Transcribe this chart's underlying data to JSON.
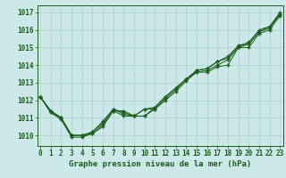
{
  "x": [
    0,
    1,
    2,
    3,
    4,
    5,
    6,
    7,
    8,
    9,
    10,
    11,
    12,
    13,
    14,
    15,
    16,
    17,
    18,
    19,
    20,
    21,
    22,
    23
  ],
  "series": [
    [
      1012.2,
      1011.3,
      1010.9,
      1009.9,
      1009.9,
      1010.1,
      1010.5,
      1011.4,
      1011.4,
      1011.1,
      1011.1,
      1011.5,
      1012.0,
      1012.5,
      1013.1,
      1013.6,
      1013.6,
      1013.9,
      1014.0,
      1015.0,
      1015.0,
      1015.8,
      1016.0,
      1016.8
    ],
    [
      1012.2,
      1011.3,
      1011.0,
      1010.0,
      1010.0,
      1010.2,
      1010.8,
      1011.5,
      1011.3,
      1011.1,
      1011.1,
      1011.6,
      1012.2,
      1012.7,
      1013.2,
      1013.7,
      1013.8,
      1014.2,
      1014.4,
      1015.1,
      1015.2,
      1015.9,
      1016.2,
      1016.9
    ],
    [
      1012.2,
      1011.4,
      1011.0,
      1010.0,
      1010.0,
      1010.1,
      1010.6,
      1011.4,
      1011.1,
      1011.1,
      1011.5,
      1011.5,
      1012.1,
      1012.6,
      1013.2,
      1013.6,
      1013.7,
      1014.0,
      1014.3,
      1015.0,
      1015.2,
      1015.9,
      1016.1,
      1016.9
    ],
    [
      1012.2,
      1011.4,
      1011.0,
      1010.0,
      1010.0,
      1010.2,
      1010.7,
      1011.5,
      1011.2,
      1011.1,
      1011.5,
      1011.6,
      1012.2,
      1012.7,
      1013.2,
      1013.7,
      1013.8,
      1014.2,
      1014.5,
      1015.1,
      1015.3,
      1016.0,
      1016.2,
      1017.0
    ]
  ],
  "ylim": [
    1009.4,
    1017.4
  ],
  "yticks": [
    1010,
    1011,
    1012,
    1013,
    1014,
    1015,
    1016,
    1017
  ],
  "xticks": [
    0,
    1,
    2,
    3,
    4,
    5,
    6,
    7,
    8,
    9,
    10,
    11,
    12,
    13,
    14,
    15,
    16,
    17,
    18,
    19,
    20,
    21,
    22,
    23
  ],
  "xlabel": "Graphe pression niveau de la mer (hPa)",
  "line_color": "#1a5c1a",
  "marker": "+",
  "bg_color": "#cce8e8",
  "grid_color": "#b0d0d0",
  "text_color": "#1a5c1a",
  "xlabel_fontsize": 6.5,
  "tick_fontsize": 5.5
}
